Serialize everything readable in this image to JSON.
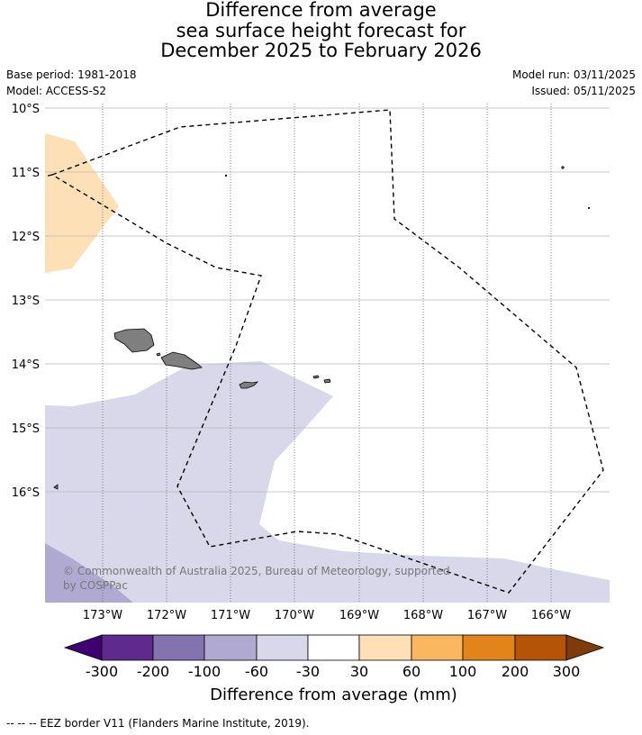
{
  "title": {
    "line1": "Difference from average",
    "line2": "sea surface height forecast for",
    "line3": "December 2025 to February 2026"
  },
  "meta": {
    "base_period": "Base period: 1981-2018",
    "model": "Model: ACCESS-S2",
    "model_run": "Model run: 03/11/2025",
    "issued": "Issued: 05/11/2025"
  },
  "map": {
    "lat_labels": [
      "10°S",
      "11°S",
      "12°S",
      "13°S",
      "14°S",
      "15°S",
      "16°S"
    ],
    "lon_labels": [
      "173°W",
      "172°W",
      "171°W",
      "170°W",
      "169°W",
      "168°W",
      "167°W",
      "166°W"
    ],
    "copyright": "© Commonwealth of Australia 2025, Bureau of Meteorology, supported by COSPPac",
    "colors": {
      "land": "#7f7f7f",
      "anomaly_pos_30_60": "#fde0b6",
      "anomaly_neg_30_60": "#d8d8ea",
      "anomaly_neg_60_100": "#b0aad2"
    }
  },
  "colorbar": {
    "title": "Difference from average (mm)",
    "tick_labels": [
      "-300",
      "-200",
      "-100",
      "-60",
      "-30",
      "30",
      "60",
      "100",
      "200",
      "300"
    ],
    "colors": [
      "#3f0071",
      "#5e2a8e",
      "#8373ae",
      "#b0aad2",
      "#d8d8ea",
      "#ffffff",
      "#fde0b6",
      "#fbb660",
      "#e2841a",
      "#b55408",
      "#7f3b08"
    ]
  },
  "footnote": "--  --  -- EEZ border V11 (Flanders Marine Institute, 2019)."
}
